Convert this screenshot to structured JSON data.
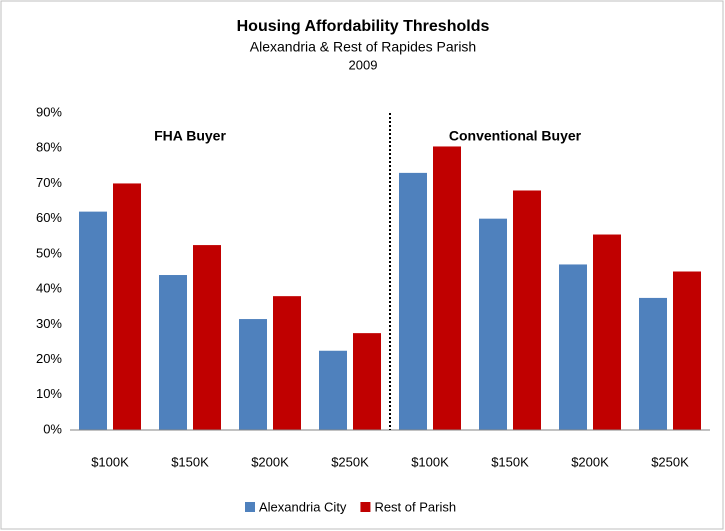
{
  "chart_data": {
    "type": "bar",
    "title": "Housing Affordability Thresholds",
    "subtitle": "Alexandria & Rest of Rapides Parish",
    "subtitle_2": "2009",
    "categories": [
      "$100K",
      "$150K",
      "$200K",
      "$250K",
      "$100K",
      "$150K",
      "$200K",
      "$250K"
    ],
    "series": [
      {
        "name": "Alexandria City",
        "color": "#4f81bd",
        "values": [
          62,
          44,
          31.5,
          22.5,
          73,
          60,
          47,
          37.5
        ]
      },
      {
        "name": "Rest of Parish",
        "color": "#c00000",
        "values": [
          70,
          52.5,
          38,
          27.5,
          80.5,
          68,
          55.5,
          45
        ]
      }
    ],
    "annotations": [
      "FHA Buyer",
      "Conventional Buyer"
    ],
    "ylim": [
      0,
      90
    ],
    "yticks": [
      {
        "value": 0,
        "label": "0%"
      },
      {
        "value": 10,
        "label": "10%"
      },
      {
        "value": 20,
        "label": "20%"
      },
      {
        "value": 30,
        "label": "30%"
      },
      {
        "value": 40,
        "label": "40%"
      },
      {
        "value": 50,
        "label": "50%"
      },
      {
        "value": 60,
        "label": "60%"
      },
      {
        "value": 70,
        "label": "70%"
      },
      {
        "value": 80,
        "label": "80%"
      },
      {
        "value": 90,
        "label": "90%"
      }
    ],
    "grid": false,
    "legend": "bottom"
  }
}
